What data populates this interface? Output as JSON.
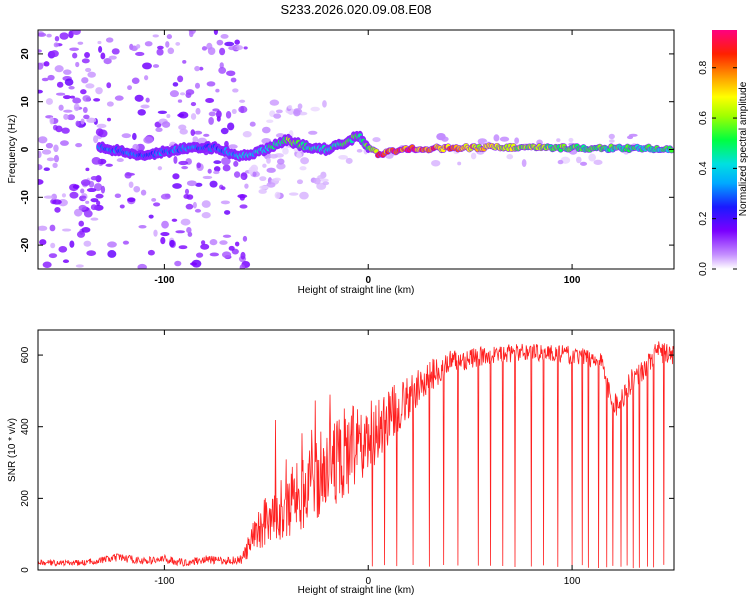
{
  "chart_data": [
    {
      "type": "heatmap",
      "title": "S233.2026.020.09.08.E08",
      "xlabel": "Height of straight line (km)",
      "ylabel": "Frequency (Hz)",
      "xlim": [
        -162,
        150
      ],
      "ylim": [
        -25,
        25
      ],
      "x_ticks": [
        -100,
        0,
        100
      ],
      "y_ticks": [
        -20,
        -10,
        0,
        10,
        20
      ],
      "colorbar": {
        "label": "Normalized spectral amplitude",
        "range": [
          0,
          0.95
        ],
        "ticks": [
          0.0,
          0.2,
          0.4,
          0.6,
          0.8
        ],
        "colormap": [
          "#ffffff",
          "#c58fff",
          "#7a00ff",
          "#1a1aff",
          "#00aaff",
          "#00e0e0",
          "#00ff40",
          "#a0ff00",
          "#ffff00",
          "#ffa000",
          "#ff2000",
          "#ff0080"
        ]
      },
      "ridge": {
        "x": [
          -130,
          -110,
          -90,
          -75,
          -62,
          -50,
          -40,
          -30,
          -20,
          -10,
          -5,
          0,
          5,
          20,
          60,
          100,
          148
        ],
        "freq": [
          0.3,
          -1.2,
          0.2,
          0.4,
          -1.5,
          0,
          2,
          0.5,
          0,
          1.6,
          3,
          0.4,
          -0.9,
          0.1,
          0.5,
          0.3,
          0.2
        ],
        "peak_amplitude": [
          0.35,
          0.3,
          0.35,
          0.3,
          0.4,
          0.45,
          0.6,
          0.5,
          0.45,
          0.6,
          0.5,
          0.55,
          0.85,
          0.9,
          0.7,
          0.55,
          0.5
        ]
      }
    },
    {
      "type": "line",
      "title": "",
      "xlabel": "Height of straight line (km)",
      "ylabel": "SNR (10 * v/v)",
      "xlim": [
        -162,
        150
      ],
      "ylim": [
        0,
        670
      ],
      "x_ticks": [
        -100,
        0,
        100
      ],
      "y_ticks": [
        0,
        200,
        400,
        600
      ],
      "series": [
        {
          "name": "SNR",
          "color": "#ff2020",
          "envelope_x": [
            -162,
            -140,
            -122,
            -110,
            -100,
            -90,
            -80,
            -70,
            -62,
            -58,
            -50,
            -40,
            -30,
            -20,
            -10,
            0,
            10,
            20,
            30,
            40,
            60,
            80,
            100,
            110,
            115,
            118,
            122,
            128,
            135,
            142,
            150
          ],
          "envelope_y": [
            20,
            20,
            35,
            25,
            30,
            20,
            30,
            25,
            30,
            70,
            150,
            180,
            230,
            290,
            330,
            360,
            430,
            480,
            540,
            580,
            600,
            610,
            600,
            590,
            580,
            490,
            460,
            520,
            560,
            610,
            600
          ],
          "noise_amplitude_y": [
            8,
            8,
            12,
            10,
            12,
            10,
            12,
            10,
            14,
            40,
            80,
            90,
            110,
            120,
            130,
            110,
            80,
            60,
            45,
            35,
            25,
            25,
            25,
            25,
            25,
            40,
            35,
            35,
            30,
            30,
            30
          ],
          "dropouts_x": [
            2,
            8,
            14,
            22,
            30,
            37,
            44,
            54,
            60,
            66,
            72,
            80,
            86,
            93,
            100,
            105,
            108,
            113,
            117,
            120,
            124,
            127,
            130,
            133,
            137,
            140,
            145
          ]
        }
      ]
    }
  ]
}
